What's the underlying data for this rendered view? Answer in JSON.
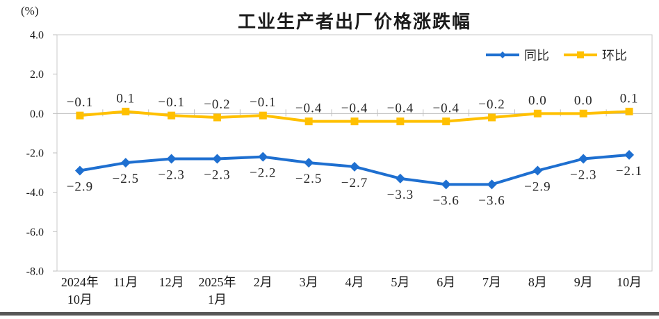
{
  "chart": {
    "title": "工业生产者出厂价格涨跌幅",
    "unit_label": "(%)",
    "legend": [
      {
        "id": "yoy",
        "name": "同比",
        "color": "#1E6FD0",
        "marker": "diamond"
      },
      {
        "id": "mom",
        "name": "环比",
        "color": "#FFC000",
        "marker": "square"
      }
    ]
  },
  "chart_data": {
    "type": "line",
    "title": "工业生产者出厂价格涨跌幅",
    "ylabel": "(%)",
    "ylim": [
      -8.0,
      4.0
    ],
    "yticks": [
      4.0,
      2.0,
      0.0,
      -2.0,
      -4.0,
      -6.0,
      -8.0
    ],
    "ytick_labels": [
      "4.0",
      "2.0",
      "0.0",
      "-2.0",
      "-4.0",
      "-6.0",
      "-8.0"
    ],
    "grid": "zero-line-only",
    "legend_position": "top-right",
    "categories": [
      [
        "2024年",
        "10月"
      ],
      [
        "11月"
      ],
      [
        "12月"
      ],
      [
        "2025年",
        "1月"
      ],
      [
        "2月"
      ],
      [
        "3月"
      ],
      [
        "4月"
      ],
      [
        "5月"
      ],
      [
        "6月"
      ],
      [
        "7月"
      ],
      [
        "8月"
      ],
      [
        "9月"
      ],
      [
        "10月"
      ]
    ],
    "series": [
      {
        "id": "yoy",
        "name": "同比",
        "color": "#1E6FD0",
        "marker": "diamond",
        "label_position": "below",
        "values": [
          -2.9,
          -2.5,
          -2.3,
          -2.3,
          -2.2,
          -2.5,
          -2.7,
          -3.3,
          -3.6,
          -3.6,
          -2.9,
          -2.3,
          -2.1
        ],
        "labels": [
          "-2.9",
          "-2.5",
          "-2.3",
          "-2.3",
          "-2.2",
          "-2.5",
          "-2.7",
          "-3.3",
          "-3.6",
          "-3.6",
          "-2.9",
          "-2.3",
          "-2.1"
        ]
      },
      {
        "id": "mom",
        "name": "环比",
        "color": "#FFC000",
        "marker": "square",
        "label_position": "above",
        "values": [
          -0.1,
          0.1,
          -0.1,
          -0.2,
          -0.1,
          -0.4,
          -0.4,
          -0.4,
          -0.4,
          -0.2,
          0.0,
          0.0,
          0.1
        ],
        "labels": [
          "-0.1",
          "0.1",
          "-0.1",
          "-0.2",
          "-0.1",
          "-0.4",
          "-0.4",
          "-0.4",
          "-0.4",
          "-0.2",
          "0.0",
          "0.0",
          "0.1"
        ]
      }
    ],
    "colors": {
      "frame": "#C9C9C9",
      "zero_line": "#BFBFBF",
      "tick": "#BFBFBF",
      "axis_text": "#1a1a1a",
      "data_label_text": "#262626",
      "bottom_bar": "#575757"
    }
  }
}
